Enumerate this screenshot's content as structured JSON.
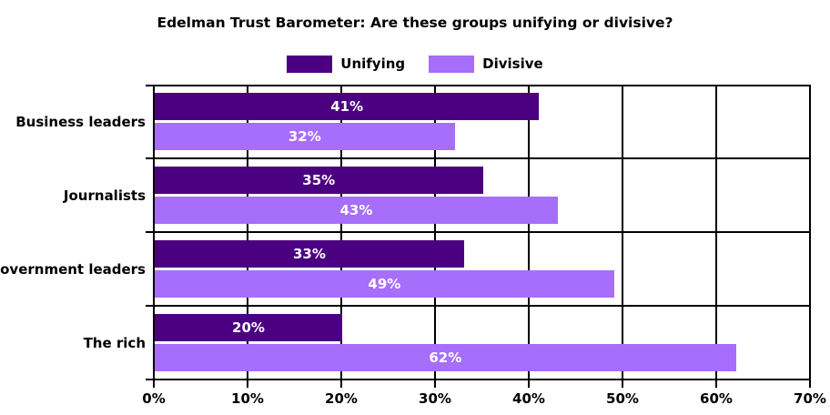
{
  "chart_data": {
    "type": "bar",
    "orientation": "horizontal",
    "title": "Edelman Trust Barometer: Are these groups unifying or divisive?",
    "categories": [
      "Business leaders",
      "Journalists",
      "Government leaders",
      "The rich"
    ],
    "series": [
      {
        "name": "Unifying",
        "color": "#4B0082",
        "values": [
          41,
          35,
          33,
          20
        ]
      },
      {
        "name": "Divisive",
        "color": "#A66EFA",
        "values": [
          32,
          43,
          49,
          62
        ]
      }
    ],
    "value_label_suffix": "%",
    "value_label_color": "#FFFFFF",
    "xlim": [
      0,
      70
    ],
    "x_tick_values": [
      0,
      10,
      20,
      30,
      40,
      50,
      60,
      70
    ],
    "x_tick_labels": [
      "0%",
      "10%",
      "20%",
      "30%",
      "40%",
      "50%",
      "60%",
      "70%"
    ],
    "grid": true,
    "grid_color": "#000000",
    "legend_position": "top",
    "background_color": "#FFFFFF",
    "text_color": "#000000"
  }
}
